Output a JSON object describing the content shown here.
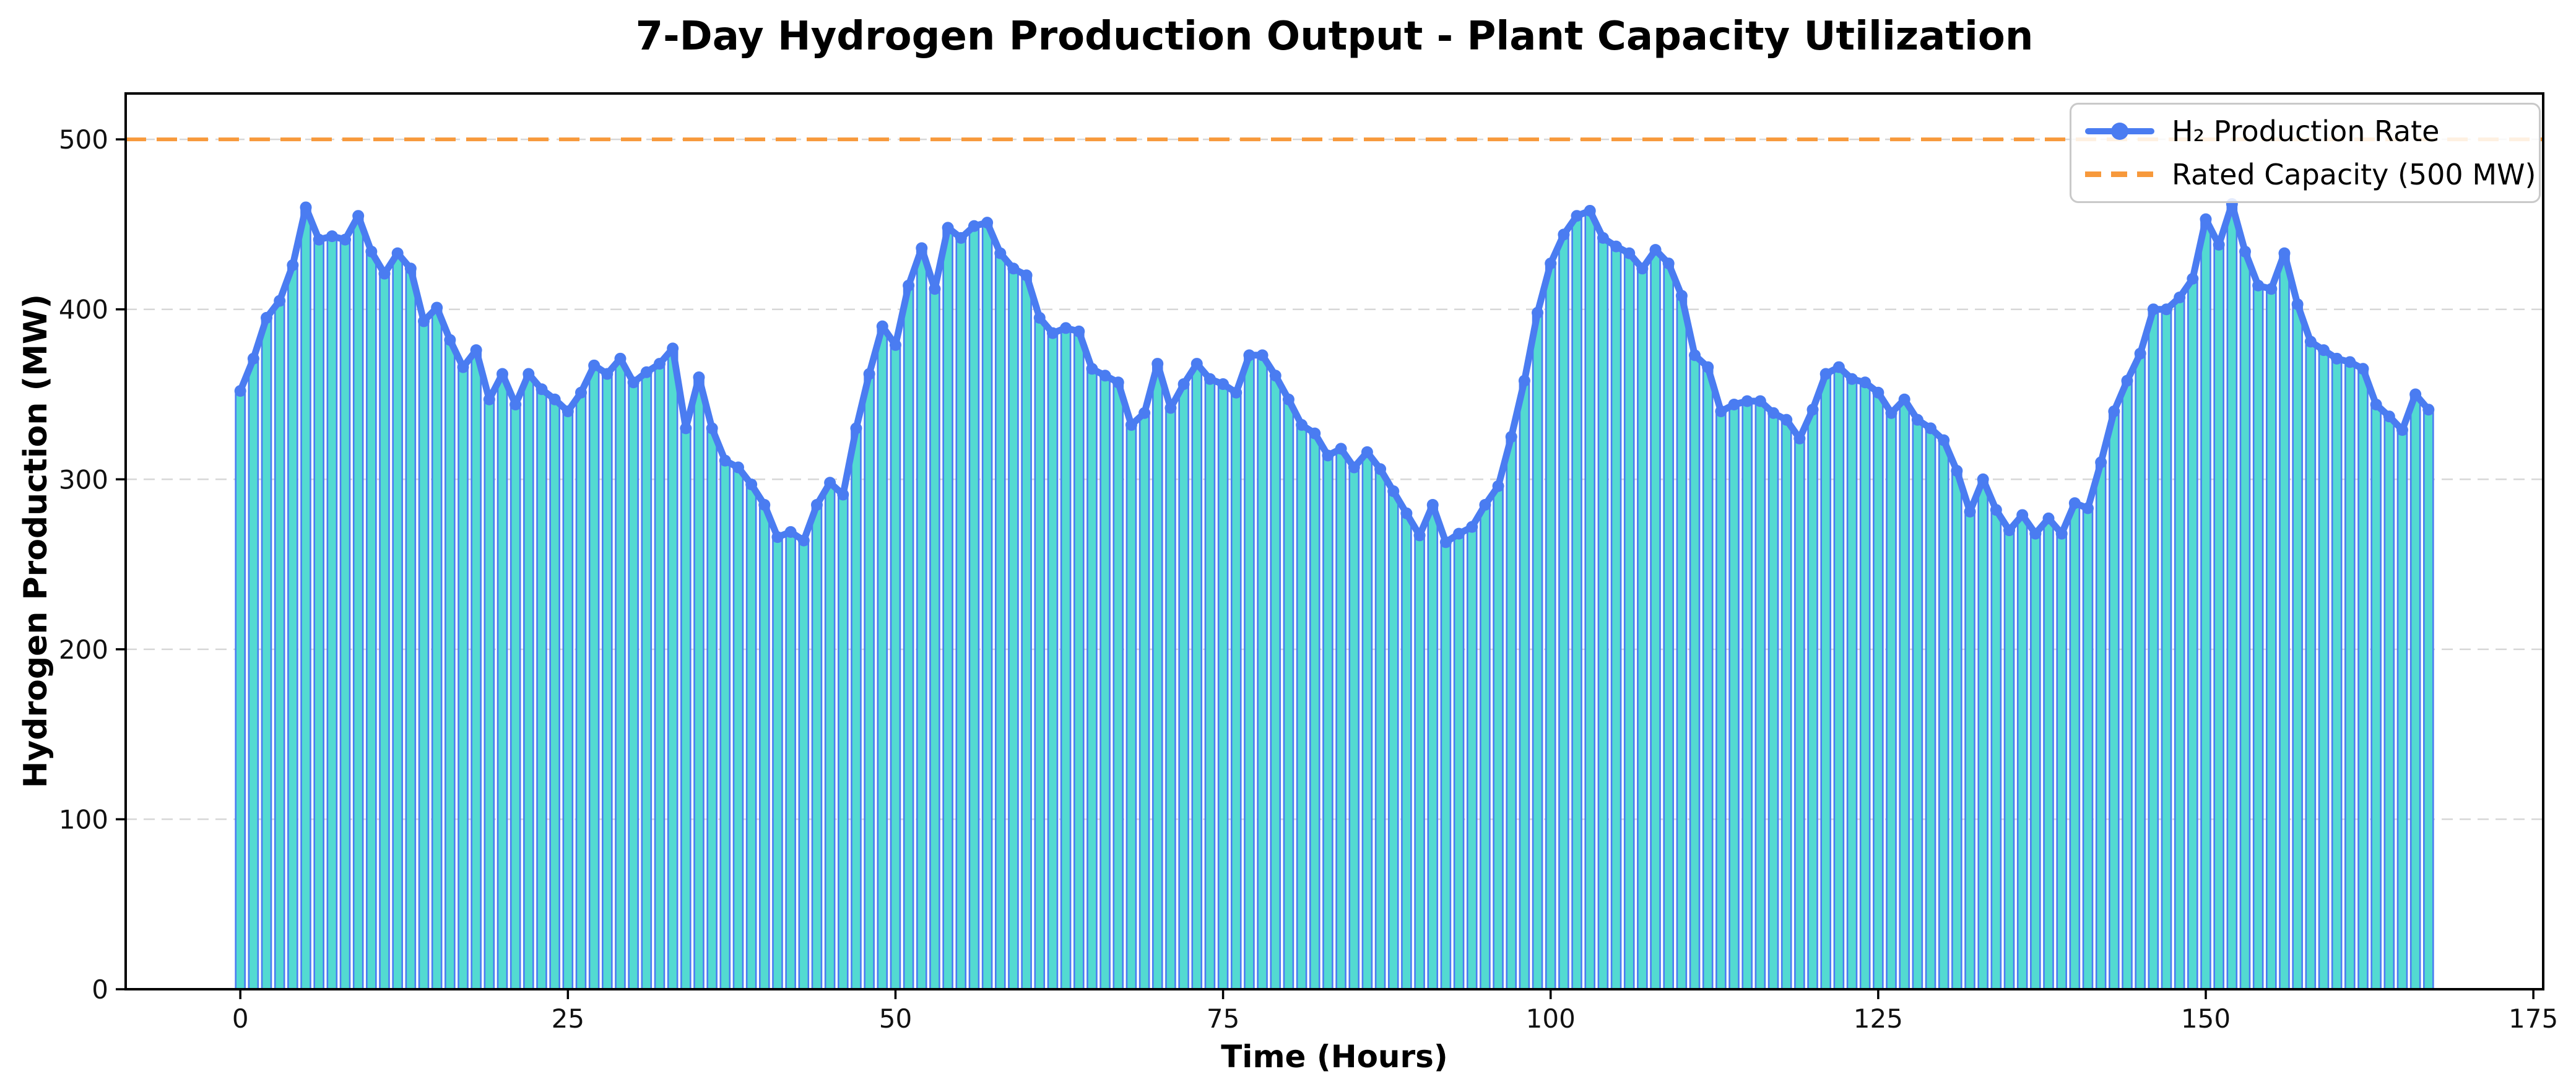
{
  "title": "7-Day Hydrogen Production Output - Plant Capacity Utilization",
  "legend": {
    "items": [
      {
        "label": "H₂ Production Rate"
      },
      {
        "label": "Rated Capacity (500 MW)"
      }
    ]
  },
  "colors": {
    "line_blue": "#4A7CF1",
    "stem_teal": "#53DAD1",
    "capacity_orange": "#F7993B",
    "gridline_gray": "#d7d7d7",
    "spine_black": "#000000"
  },
  "chart_data": {
    "type": "line",
    "title": "7-Day Hydrogen Production Output - Plant Capacity Utilization",
    "xlabel": "Time (Hours)",
    "ylabel": "Hydrogen Production (MW)",
    "xlim": [
      -8.75,
      175.75
    ],
    "ylim": [
      0,
      527
    ],
    "xticks": [
      0,
      25,
      50,
      75,
      100,
      125,
      150,
      175
    ],
    "yticks": [
      0,
      100,
      200,
      300,
      400,
      500
    ],
    "grid": true,
    "legend_position": "upper right",
    "x_description": "hours 0 through 167, one value per hour (x = array index)",
    "series": [
      {
        "name": "H₂ Production Rate",
        "style": "line with circle markers and teal stem bars to zero",
        "color": "#4A7CF1",
        "stem_fill": "#53DAD1",
        "values": [
          352,
          371,
          395,
          405,
          426,
          460,
          441,
          443,
          441,
          455,
          434,
          421,
          433,
          424,
          393,
          401,
          382,
          366,
          376,
          347,
          362,
          344,
          362,
          353,
          347,
          340,
          351,
          367,
          362,
          371,
          357,
          363,
          368,
          377,
          330,
          360,
          330,
          311,
          307,
          297,
          285,
          266,
          269,
          264,
          285,
          298,
          291,
          330,
          362,
          390,
          379,
          414,
          436,
          412,
          448,
          442,
          449,
          451,
          433,
          424,
          420,
          395,
          386,
          389,
          387,
          365,
          361,
          357,
          332,
          339,
          368,
          342,
          356,
          368,
          359,
          356,
          351,
          373,
          373,
          361,
          347,
          332,
          327,
          314,
          318,
          307,
          316,
          306,
          293,
          280,
          267,
          285,
          263,
          268,
          272,
          285,
          296,
          325,
          358,
          398,
          427,
          444,
          455,
          458,
          442,
          437,
          433,
          424,
          435,
          427,
          408,
          373,
          366,
          340,
          344,
          346,
          346,
          339,
          335,
          324,
          341,
          362,
          366,
          359,
          357,
          351,
          339,
          347,
          335,
          330,
          323,
          305,
          281,
          300,
          282,
          270,
          279,
          268,
          277,
          268,
          286,
          283,
          310,
          340,
          358,
          374,
          400,
          400,
          407,
          418,
          453,
          438,
          462,
          434,
          414,
          412,
          433,
          403,
          381,
          376,
          371,
          369,
          365,
          344,
          337,
          329,
          350,
          341
        ]
      },
      {
        "name": "Rated Capacity (500 MW)",
        "style": "horizontal dashed line",
        "color": "#F7993B",
        "value": 500
      }
    ]
  }
}
